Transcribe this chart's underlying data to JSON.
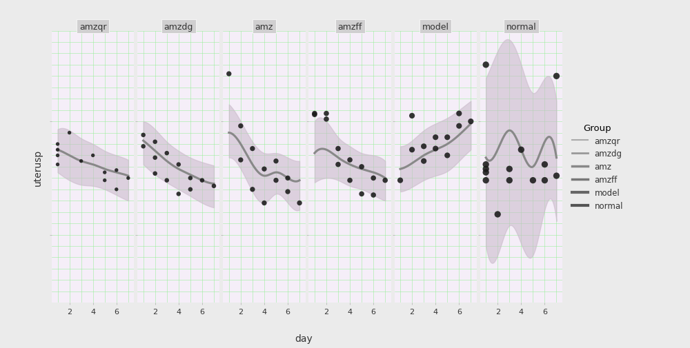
{
  "groups": [
    "amzqr",
    "amzdg",
    "amz",
    "amzff",
    "model",
    "normal"
  ],
  "ylabel": "uterusp",
  "xlabel": "day",
  "fig_bg": "#ebebeb",
  "panel_bg": "#f5eef8",
  "strip_bg": "#d0cfd0",
  "strip_text_color": "#333333",
  "ylim": [
    0.04,
    0.28
  ],
  "yticks": [
    0.1,
    0.2
  ],
  "days": [
    1,
    2,
    3,
    4,
    5,
    6,
    7
  ],
  "band_fill_color": "#c9b8c9",
  "band_alpha": 0.55,
  "line_color": "#888888",
  "point_color": "#1a1a1a",
  "grid_color": "#90ee90",
  "group_data": {
    "amzqr": {
      "mean": [
        0.175,
        0.17,
        0.165,
        0.162,
        0.158,
        0.155,
        0.152
      ],
      "upper": [
        0.193,
        0.192,
        0.185,
        0.18,
        0.174,
        0.17,
        0.166
      ],
      "lower": [
        0.155,
        0.148,
        0.144,
        0.143,
        0.14,
        0.135,
        0.13
      ],
      "points_x": [
        1,
        1,
        1,
        1,
        2,
        3,
        4,
        5,
        5,
        6,
        6,
        7
      ],
      "points_y": [
        0.18,
        0.175,
        0.17,
        0.162,
        0.19,
        0.165,
        0.17,
        0.148,
        0.155,
        0.14,
        0.157,
        0.15
      ],
      "pt_size": 15
    },
    "amzdg": {
      "mean": [
        0.183,
        0.174,
        0.165,
        0.158,
        0.153,
        0.148,
        0.145
      ],
      "upper": [
        0.2,
        0.193,
        0.182,
        0.174,
        0.168,
        0.164,
        0.161
      ],
      "lower": [
        0.162,
        0.153,
        0.146,
        0.14,
        0.134,
        0.128,
        0.124
      ],
      "points_x": [
        1,
        1,
        2,
        2,
        2,
        3,
        3,
        4,
        4,
        5,
        5,
        6,
        7
      ],
      "points_y": [
        0.188,
        0.178,
        0.182,
        0.168,
        0.154,
        0.172,
        0.148,
        0.162,
        0.136,
        0.15,
        0.14,
        0.148,
        0.143
      ],
      "pt_size": 22
    },
    "amz": {
      "mean": [
        0.19,
        0.18,
        0.162,
        0.152,
        0.155,
        0.15,
        0.148
      ],
      "upper": [
        0.215,
        0.2,
        0.182,
        0.172,
        0.172,
        0.168,
        0.165
      ],
      "lower": [
        0.168,
        0.158,
        0.138,
        0.128,
        0.136,
        0.128,
        0.122
      ],
      "points_x": [
        1,
        2,
        2,
        3,
        3,
        4,
        4,
        5,
        5,
        6,
        6,
        7
      ],
      "points_y": [
        0.242,
        0.196,
        0.166,
        0.176,
        0.14,
        0.158,
        0.128,
        0.165,
        0.148,
        0.15,
        0.138,
        0.128
      ],
      "pt_size": 28
    },
    "amzff": {
      "mean": [
        0.172,
        0.175,
        0.168,
        0.162,
        0.158,
        0.155,
        0.15
      ],
      "upper": [
        0.2,
        0.2,
        0.186,
        0.178,
        0.172,
        0.17,
        0.165
      ],
      "lower": [
        0.146,
        0.15,
        0.148,
        0.143,
        0.14,
        0.135,
        0.13
      ],
      "points_x": [
        1,
        1,
        2,
        2,
        3,
        3,
        4,
        4,
        5,
        5,
        6,
        6,
        7
      ],
      "points_y": [
        0.207,
        0.206,
        0.207,
        0.202,
        0.176,
        0.162,
        0.166,
        0.148,
        0.16,
        0.136,
        0.15,
        0.135,
        0.148
      ],
      "pt_size": 30
    },
    "model": {
      "mean": [
        0.158,
        0.163,
        0.17,
        0.175,
        0.18,
        0.188,
        0.198
      ],
      "upper": [
        0.178,
        0.183,
        0.192,
        0.198,
        0.203,
        0.21,
        0.218
      ],
      "lower": [
        0.138,
        0.142,
        0.148,
        0.152,
        0.156,
        0.165,
        0.175
      ],
      "points_x": [
        1,
        2,
        2,
        3,
        3,
        4,
        4,
        5,
        5,
        6,
        6,
        7
      ],
      "points_y": [
        0.148,
        0.205,
        0.175,
        0.178,
        0.165,
        0.186,
        0.176,
        0.186,
        0.17,
        0.207,
        0.196,
        0.2
      ],
      "pt_size": 35
    },
    "normal": {
      "mean": [
        0.168,
        0.175,
        0.192,
        0.175,
        0.16,
        0.182,
        0.168
      ],
      "upper": [
        0.238,
        0.262,
        0.272,
        0.25,
        0.225,
        0.238,
        0.218
      ],
      "lower": [
        0.09,
        0.082,
        0.108,
        0.092,
        0.082,
        0.122,
        0.112
      ],
      "points_x": [
        1,
        1,
        1,
        1,
        1,
        2,
        3,
        3,
        4,
        5,
        6,
        6,
        7,
        7
      ],
      "points_y": [
        0.25,
        0.162,
        0.158,
        0.155,
        0.148,
        0.118,
        0.158,
        0.148,
        0.175,
        0.148,
        0.162,
        0.148,
        0.24,
        0.152
      ],
      "pt_size": 45
    }
  },
  "legend_labels": [
    "amzqr",
    "amzdg",
    "amz",
    "amzff",
    "model",
    "normal"
  ],
  "legend_line_colors": [
    "#aaaaaa",
    "#999999",
    "#888888",
    "#777777",
    "#666666",
    "#555555"
  ],
  "legend_line_widths": [
    1.5,
    2.0,
    2.5,
    2.5,
    3.0,
    3.0
  ]
}
